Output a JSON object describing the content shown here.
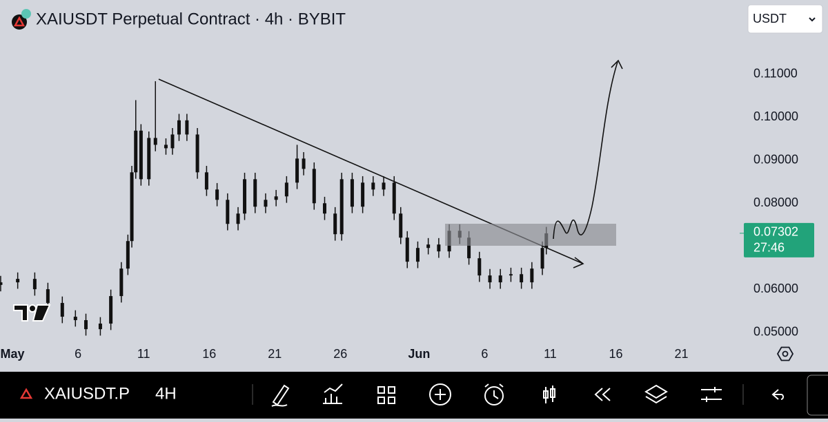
{
  "chart_data": {
    "type": "candlestick",
    "title": "XAIUSDT Perpetual Contract · 4h · BYBIT",
    "currency": "USDT",
    "color": "#111111",
    "last_price_color": "#22a37a",
    "last_price": 0.07302,
    "countdown": "27:46",
    "symbol": "XAIUSDT.P",
    "interval": "4H",
    "grid": false,
    "xlim": [
      -0.95,
      55.6
    ],
    "ylim": [
      0.0472,
      0.1273
    ],
    "xticks": [
      {
        "value": 0,
        "label": "May"
      },
      {
        "value": 5,
        "label": "6"
      },
      {
        "value": 10,
        "label": "11"
      },
      {
        "value": 15,
        "label": "16"
      },
      {
        "value": 20,
        "label": "21"
      },
      {
        "value": 25,
        "label": "26"
      },
      {
        "value": 31,
        "label": "Jun"
      },
      {
        "value": 36,
        "label": "6"
      },
      {
        "value": 41,
        "label": "11"
      },
      {
        "value": 46,
        "label": "16"
      },
      {
        "value": 51,
        "label": "21"
      }
    ],
    "yticks": [
      {
        "value": 0.05,
        "label": "0.05000"
      },
      {
        "value": 0.06,
        "label": "0.06000"
      },
      {
        "value": 0.08,
        "label": "0.08000"
      },
      {
        "value": 0.09,
        "label": "0.09000"
      },
      {
        "value": 0.1,
        "label": "0.10000"
      },
      {
        "value": 0.11,
        "label": "0.11000"
      }
    ],
    "x": [
      -0.9,
      0.4,
      1.7,
      2.7,
      3.8,
      4.8,
      5.6,
      6.7,
      7.5,
      8.3,
      8.8,
      9.1,
      9.4,
      9.8,
      10.4,
      10.9,
      11.7,
      12.2,
      12.7,
      13.3,
      14.1,
      14.8,
      15.6,
      16.4,
      17.2,
      17.7,
      18.5,
      19.3,
      20.1,
      20.9,
      21.7,
      22.2,
      23.0,
      23.8,
      24.6,
      25.1,
      25.9,
      26.7,
      27.5,
      28.3,
      29.1,
      29.6,
      30.1,
      30.9,
      31.7,
      32.5,
      33.3,
      34.1,
      34.8,
      35.6,
      36.4,
      37.2,
      38.0,
      38.8,
      39.6,
      40.4,
      40.7
    ],
    "open": [
      0.061,
      0.0616,
      0.0624,
      0.06,
      0.0568,
      0.0536,
      0.0528,
      0.0507,
      0.052,
      0.0584,
      0.0648,
      0.0712,
      0.0872,
      0.0969,
      0.0856,
      0.0952,
      0.0936,
      0.0928,
      0.096,
      0.0993,
      0.096,
      0.0872,
      0.0832,
      0.0808,
      0.0752,
      0.0776,
      0.0856,
      0.0792,
      0.0808,
      0.0816,
      0.0848,
      0.0904,
      0.088,
      0.08,
      0.0776,
      0.0728,
      0.0856,
      0.0792,
      0.0848,
      0.0832,
      0.0848,
      0.0776,
      0.072,
      0.0664,
      0.0696,
      0.0704,
      0.0688,
      0.0736,
      0.072,
      0.0672,
      0.0632,
      0.0616,
      0.0632,
      0.0635,
      0.0616,
      0.0648,
      0.0696
    ],
    "high": [
      0.0631,
      0.0639,
      0.0639,
      0.0615,
      0.0583,
      0.0551,
      0.0543,
      0.0535,
      0.0599,
      0.0663,
      0.0727,
      0.0887,
      0.104,
      0.0984,
      0.0967,
      0.1084,
      0.0951,
      0.0975,
      0.1008,
      0.1008,
      0.0975,
      0.0887,
      0.0847,
      0.0823,
      0.0791,
      0.0871,
      0.0871,
      0.0823,
      0.0831,
      0.0863,
      0.0936,
      0.0919,
      0.0895,
      0.0815,
      0.0791,
      0.0871,
      0.0871,
      0.0863,
      0.0863,
      0.0863,
      0.0863,
      0.0791,
      0.0735,
      0.0711,
      0.0719,
      0.0719,
      0.0751,
      0.0751,
      0.0735,
      0.0687,
      0.0647,
      0.0647,
      0.065,
      0.065,
      0.0663,
      0.0711,
      0.0745
    ],
    "low": [
      0.0595,
      0.0601,
      0.0585,
      0.0553,
      0.0521,
      0.0513,
      0.0492,
      0.0492,
      0.0505,
      0.0569,
      0.0633,
      0.0697,
      0.0857,
      0.0841,
      0.0841,
      0.0921,
      0.0913,
      0.0913,
      0.0945,
      0.0945,
      0.0857,
      0.0817,
      0.0793,
      0.0737,
      0.0737,
      0.0761,
      0.0777,
      0.0777,
      0.0793,
      0.0801,
      0.0833,
      0.0865,
      0.0785,
      0.0761,
      0.0713,
      0.0713,
      0.0777,
      0.0777,
      0.0817,
      0.0817,
      0.0761,
      0.0705,
      0.0649,
      0.0649,
      0.0681,
      0.0673,
      0.0673,
      0.0705,
      0.0657,
      0.0617,
      0.0601,
      0.0601,
      0.0617,
      0.0601,
      0.0601,
      0.0633,
      0.0681
    ],
    "close": [
      0.0616,
      0.0624,
      0.06,
      0.0568,
      0.0536,
      0.0528,
      0.0507,
      0.052,
      0.0584,
      0.0648,
      0.0712,
      0.0872,
      0.0969,
      0.0856,
      0.0952,
      0.0936,
      0.0928,
      0.096,
      0.0993,
      0.096,
      0.0872,
      0.0832,
      0.0808,
      0.0752,
      0.0776,
      0.0856,
      0.0792,
      0.0808,
      0.0816,
      0.0848,
      0.0904,
      0.088,
      0.08,
      0.0776,
      0.0728,
      0.0856,
      0.0792,
      0.0848,
      0.0832,
      0.0848,
      0.0776,
      0.072,
      0.0664,
      0.0696,
      0.0704,
      0.0688,
      0.0736,
      0.072,
      0.0672,
      0.0632,
      0.0616,
      0.0632,
      0.0635,
      0.0616,
      0.0648,
      0.0696,
      0.073
    ]
  }
}
